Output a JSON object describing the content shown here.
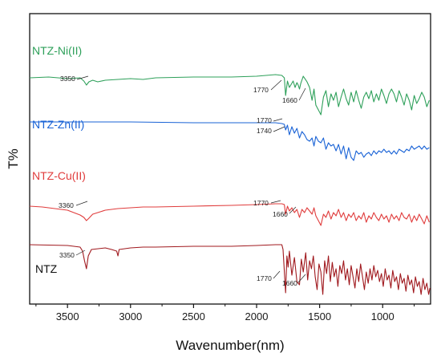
{
  "chart_data": {
    "type": "line",
    "title": "",
    "xlabel": "Wavenumber(nm)",
    "ylabel": "T%",
    "x_reversed": true,
    "xlim": [
      3800,
      620
    ],
    "xticks": [
      3500,
      3000,
      2500,
      2000,
      1500,
      1000
    ],
    "yticks_shown": false,
    "grid": false,
    "series": [
      {
        "name": "NTZ-Ni(II)",
        "color": "#2ea05a",
        "offset": 80,
        "points": [
          [
            3800,
            0
          ],
          [
            3650,
            -1
          ],
          [
            3500,
            1
          ],
          [
            3400,
            0
          ],
          [
            3370,
            4
          ],
          [
            3350,
            9
          ],
          [
            3330,
            5
          ],
          [
            3300,
            3
          ],
          [
            3260,
            5
          ],
          [
            3200,
            3
          ],
          [
            3100,
            2
          ],
          [
            3000,
            1
          ],
          [
            2900,
            2
          ],
          [
            2800,
            0
          ],
          [
            2500,
            -1
          ],
          [
            2200,
            -1
          ],
          [
            2000,
            -2
          ],
          [
            1850,
            -4
          ],
          [
            1800,
            -3
          ],
          [
            1780,
            0
          ],
          [
            1770,
            22
          ],
          [
            1755,
            4
          ],
          [
            1740,
            12
          ],
          [
            1710,
            4
          ],
          [
            1695,
            12
          ],
          [
            1680,
            6
          ],
          [
            1670,
            9
          ],
          [
            1660,
            14
          ],
          [
            1650,
            7
          ],
          [
            1630,
            -2
          ],
          [
            1600,
            5
          ],
          [
            1580,
            12
          ],
          [
            1560,
            28
          ],
          [
            1545,
            14
          ],
          [
            1530,
            34
          ],
          [
            1510,
            40
          ],
          [
            1490,
            46
          ],
          [
            1470,
            24
          ],
          [
            1450,
            16
          ],
          [
            1430,
            36
          ],
          [
            1410,
            20
          ],
          [
            1390,
            28
          ],
          [
            1370,
            18
          ],
          [
            1350,
            36
          ],
          [
            1330,
            24
          ],
          [
            1310,
            14
          ],
          [
            1290,
            26
          ],
          [
            1270,
            34
          ],
          [
            1250,
            18
          ],
          [
            1230,
            30
          ],
          [
            1210,
            16
          ],
          [
            1190,
            28
          ],
          [
            1170,
            38
          ],
          [
            1150,
            24
          ],
          [
            1130,
            18
          ],
          [
            1110,
            26
          ],
          [
            1090,
            16
          ],
          [
            1070,
            30
          ],
          [
            1050,
            20
          ],
          [
            1030,
            28
          ],
          [
            1010,
            14
          ],
          [
            990,
            22
          ],
          [
            970,
            32
          ],
          [
            950,
            20
          ],
          [
            930,
            14
          ],
          [
            910,
            20
          ],
          [
            890,
            30
          ],
          [
            870,
            16
          ],
          [
            850,
            24
          ],
          [
            830,
            34
          ],
          [
            810,
            20
          ],
          [
            790,
            28
          ],
          [
            770,
            40
          ],
          [
            750,
            22
          ],
          [
            730,
            32
          ],
          [
            710,
            26
          ],
          [
            690,
            18
          ],
          [
            670,
            24
          ],
          [
            650,
            36
          ],
          [
            630,
            28
          ]
        ],
        "annotations": [
          "3350",
          "1770",
          "1660"
        ]
      },
      {
        "name": "NTZ-Zn(II)",
        "color": "#1a63d6",
        "offset": 135,
        "points": [
          [
            3800,
            0
          ],
          [
            3500,
            0
          ],
          [
            3000,
            0
          ],
          [
            2500,
            1
          ],
          [
            2000,
            1
          ],
          [
            1850,
            1
          ],
          [
            1800,
            2
          ],
          [
            1780,
            3
          ],
          [
            1770,
            10
          ],
          [
            1755,
            4
          ],
          [
            1740,
            16
          ],
          [
            1720,
            6
          ],
          [
            1700,
            14
          ],
          [
            1680,
            8
          ],
          [
            1660,
            20
          ],
          [
            1640,
            12
          ],
          [
            1620,
            16
          ],
          [
            1600,
            22
          ],
          [
            1580,
            24
          ],
          [
            1560,
            20
          ],
          [
            1545,
            30
          ],
          [
            1530,
            18
          ],
          [
            1510,
            24
          ],
          [
            1490,
            26
          ],
          [
            1470,
            20
          ],
          [
            1450,
            34
          ],
          [
            1430,
            26
          ],
          [
            1410,
            30
          ],
          [
            1390,
            28
          ],
          [
            1370,
            36
          ],
          [
            1350,
            28
          ],
          [
            1330,
            40
          ],
          [
            1310,
            30
          ],
          [
            1290,
            46
          ],
          [
            1270,
            32
          ],
          [
            1250,
            44
          ],
          [
            1230,
            48
          ],
          [
            1210,
            36
          ],
          [
            1190,
            40
          ],
          [
            1170,
            38
          ],
          [
            1150,
            44
          ],
          [
            1130,
            40
          ],
          [
            1110,
            38
          ],
          [
            1090,
            42
          ],
          [
            1070,
            36
          ],
          [
            1050,
            40
          ],
          [
            1030,
            36
          ],
          [
            1010,
            38
          ],
          [
            990,
            34
          ],
          [
            970,
            38
          ],
          [
            950,
            36
          ],
          [
            930,
            40
          ],
          [
            910,
            36
          ],
          [
            890,
            40
          ],
          [
            870,
            34
          ],
          [
            850,
            36
          ],
          [
            830,
            38
          ],
          [
            810,
            34
          ],
          [
            790,
            36
          ],
          [
            770,
            30
          ],
          [
            750,
            34
          ],
          [
            730,
            32
          ],
          [
            710,
            30
          ],
          [
            690,
            34
          ],
          [
            670,
            30
          ],
          [
            650,
            34
          ],
          [
            630,
            32
          ]
        ],
        "annotations": [
          "1770",
          "1740"
        ]
      },
      {
        "name": "NTZ-Cu(II)",
        "color": "#e03c3c",
        "offset": 238,
        "points": [
          [
            3800,
            2
          ],
          [
            3700,
            3
          ],
          [
            3600,
            5
          ],
          [
            3500,
            7
          ],
          [
            3450,
            10
          ],
          [
            3400,
            13
          ],
          [
            3370,
            16
          ],
          [
            3350,
            20
          ],
          [
            3330,
            17
          ],
          [
            3300,
            12
          ],
          [
            3260,
            10
          ],
          [
            3200,
            7
          ],
          [
            3100,
            5
          ],
          [
            3000,
            4
          ],
          [
            2900,
            3
          ],
          [
            2800,
            3
          ],
          [
            2500,
            2
          ],
          [
            2200,
            1
          ],
          [
            2000,
            0
          ],
          [
            1850,
            -1
          ],
          [
            1800,
            -1
          ],
          [
            1780,
            0
          ],
          [
            1770,
            12
          ],
          [
            1755,
            2
          ],
          [
            1740,
            8
          ],
          [
            1720,
            4
          ],
          [
            1700,
            10
          ],
          [
            1680,
            6
          ],
          [
            1660,
            16
          ],
          [
            1640,
            6
          ],
          [
            1620,
            10
          ],
          [
            1600,
            4
          ],
          [
            1580,
            8
          ],
          [
            1560,
            12
          ],
          [
            1545,
            4
          ],
          [
            1530,
            14
          ],
          [
            1510,
            20
          ],
          [
            1490,
            26
          ],
          [
            1470,
            12
          ],
          [
            1450,
            16
          ],
          [
            1430,
            8
          ],
          [
            1410,
            18
          ],
          [
            1390,
            10
          ],
          [
            1370,
            14
          ],
          [
            1350,
            6
          ],
          [
            1330,
            16
          ],
          [
            1310,
            10
          ],
          [
            1290,
            20
          ],
          [
            1270,
            12
          ],
          [
            1250,
            16
          ],
          [
            1230,
            10
          ],
          [
            1210,
            20
          ],
          [
            1190,
            14
          ],
          [
            1170,
            18
          ],
          [
            1150,
            10
          ],
          [
            1130,
            22
          ],
          [
            1110,
            14
          ],
          [
            1090,
            18
          ],
          [
            1070,
            10
          ],
          [
            1050,
            16
          ],
          [
            1030,
            20
          ],
          [
            1010,
            12
          ],
          [
            990,
            18
          ],
          [
            970,
            14
          ],
          [
            950,
            22
          ],
          [
            930,
            12
          ],
          [
            910,
            18
          ],
          [
            890,
            14
          ],
          [
            870,
            20
          ],
          [
            850,
            10
          ],
          [
            830,
            16
          ],
          [
            810,
            18
          ],
          [
            790,
            12
          ],
          [
            770,
            22
          ],
          [
            750,
            14
          ],
          [
            730,
            20
          ],
          [
            710,
            12
          ],
          [
            690,
            18
          ],
          [
            670,
            24
          ],
          [
            650,
            14
          ],
          [
            630,
            22
          ]
        ],
        "annotations": [
          "3360",
          "1770",
          "1660"
        ]
      },
      {
        "name": "NTZ",
        "color": "#a0191e",
        "offset": 288,
        "points": [
          [
            3800,
            0
          ],
          [
            3500,
            1
          ],
          [
            3400,
            3
          ],
          [
            3380,
            8
          ],
          [
            3365,
            20
          ],
          [
            3350,
            30
          ],
          [
            3335,
            14
          ],
          [
            3310,
            6
          ],
          [
            3200,
            4
          ],
          [
            3150,
            6
          ],
          [
            3110,
            8
          ],
          [
            3100,
            14
          ],
          [
            3090,
            6
          ],
          [
            3000,
            4
          ],
          [
            2900,
            3
          ],
          [
            2800,
            3
          ],
          [
            2500,
            2
          ],
          [
            2200,
            2
          ],
          [
            2000,
            1
          ],
          [
            1850,
            0
          ],
          [
            1800,
            0
          ],
          [
            1790,
            6
          ],
          [
            1770,
            60
          ],
          [
            1760,
            14
          ],
          [
            1750,
            28
          ],
          [
            1740,
            8
          ],
          [
            1720,
            38
          ],
          [
            1700,
            16
          ],
          [
            1680,
            46
          ],
          [
            1660,
            50
          ],
          [
            1645,
            18
          ],
          [
            1630,
            34
          ],
          [
            1610,
            10
          ],
          [
            1595,
            44
          ],
          [
            1580,
            20
          ],
          [
            1565,
            30
          ],
          [
            1550,
            14
          ],
          [
            1535,
            40
          ],
          [
            1520,
            56
          ],
          [
            1505,
            24
          ],
          [
            1490,
            34
          ],
          [
            1475,
            62
          ],
          [
            1460,
            20
          ],
          [
            1445,
            36
          ],
          [
            1430,
            14
          ],
          [
            1415,
            46
          ],
          [
            1400,
            22
          ],
          [
            1385,
            40
          ],
          [
            1370,
            30
          ],
          [
            1355,
            52
          ],
          [
            1340,
            26
          ],
          [
            1325,
            36
          ],
          [
            1310,
            20
          ],
          [
            1295,
            44
          ],
          [
            1280,
            30
          ],
          [
            1265,
            50
          ],
          [
            1250,
            26
          ],
          [
            1235,
            40
          ],
          [
            1220,
            54
          ],
          [
            1205,
            30
          ],
          [
            1190,
            46
          ],
          [
            1175,
            24
          ],
          [
            1160,
            40
          ],
          [
            1145,
            56
          ],
          [
            1130,
            34
          ],
          [
            1115,
            48
          ],
          [
            1100,
            30
          ],
          [
            1085,
            44
          ],
          [
            1070,
            26
          ],
          [
            1055,
            40
          ],
          [
            1040,
            32
          ],
          [
            1025,
            46
          ],
          [
            1010,
            36
          ],
          [
            995,
            52
          ],
          [
            980,
            30
          ],
          [
            965,
            44
          ],
          [
            950,
            38
          ],
          [
            935,
            54
          ],
          [
            920,
            32
          ],
          [
            905,
            46
          ],
          [
            890,
            40
          ],
          [
            875,
            56
          ],
          [
            860,
            36
          ],
          [
            845,
            48
          ],
          [
            830,
            42
          ],
          [
            815,
            58
          ],
          [
            800,
            38
          ],
          [
            785,
            50
          ],
          [
            770,
            44
          ],
          [
            755,
            60
          ],
          [
            740,
            40
          ],
          [
            725,
            52
          ],
          [
            710,
            46
          ],
          [
            695,
            62
          ],
          [
            680,
            42
          ],
          [
            665,
            56
          ],
          [
            650,
            48
          ],
          [
            635,
            62
          ],
          [
            625,
            54
          ]
        ],
        "annotations": [
          "3350",
          "1770",
          "1660"
        ]
      }
    ]
  }
}
